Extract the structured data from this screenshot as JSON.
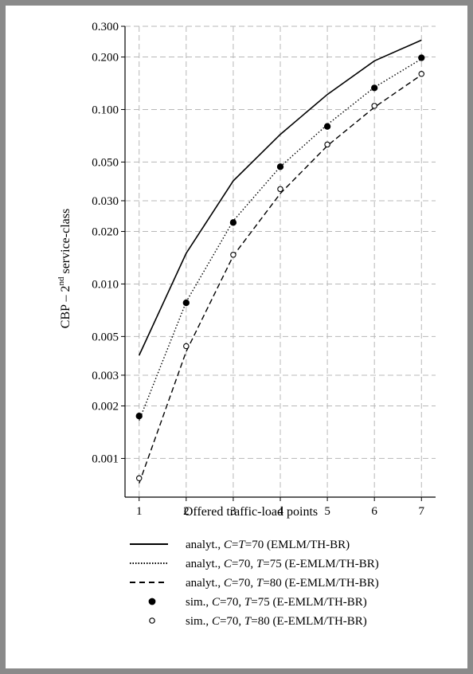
{
  "chart_data": {
    "type": "line",
    "yscale": "log",
    "xlabel": "Offered traffic-load points",
    "ylabel_main": "CBP – 2",
    "ylabel_sup": "nd",
    "ylabel_tail": " service-class",
    "ylim": [
      0.0006,
      0.3
    ],
    "xlim": [
      0.7,
      7.3
    ],
    "grid": true,
    "x": [
      1,
      2,
      3,
      4,
      5,
      6,
      7
    ],
    "x_ticks": [
      "1",
      "2",
      "3",
      "4",
      "5",
      "6",
      "7"
    ],
    "y_ticks": [
      {
        "v": 0.001,
        "label": "0.001"
      },
      {
        "v": 0.002,
        "label": "0.002"
      },
      {
        "v": 0.003,
        "label": "0.003"
      },
      {
        "v": 0.005,
        "label": "0.005"
      },
      {
        "v": 0.01,
        "label": "0.010"
      },
      {
        "v": 0.02,
        "label": "0.020"
      },
      {
        "v": 0.03,
        "label": "0.030"
      },
      {
        "v": 0.05,
        "label": "0.050"
      },
      {
        "v": 0.1,
        "label": "0.100"
      },
      {
        "v": 0.2,
        "label": "0.200"
      },
      {
        "v": 0.3,
        "label": "0.300"
      }
    ],
    "series": [
      {
        "name": "analyt., C=T=70 (EMLM/TH-BR)",
        "kind": "line",
        "style": "solid",
        "values": [
          0.0039,
          0.015,
          0.039,
          0.072,
          0.122,
          0.19,
          0.25
        ]
      },
      {
        "name": "analyt., C=70, T=75 (E-EMLM/TH-BR)",
        "kind": "line",
        "style": "dotted",
        "values": [
          0.00165,
          0.0079,
          0.023,
          0.047,
          0.082,
          0.134,
          0.195
        ]
      },
      {
        "name": "analyt., C=70, T=80 (E-EMLM/TH-BR)",
        "kind": "line",
        "style": "dashed",
        "values": [
          0.00072,
          0.0041,
          0.0145,
          0.033,
          0.062,
          0.103,
          0.158
        ]
      },
      {
        "name": "sim., C=70, T=75 (E-EMLM/TH-BR)",
        "kind": "marker",
        "style": "filled",
        "values": [
          0.00175,
          0.0078,
          0.0225,
          0.047,
          0.08,
          0.133,
          0.198
        ]
      },
      {
        "name": "sim., C=70, T=80 (E-EMLM/TH-BR)",
        "kind": "marker",
        "style": "open",
        "values": [
          0.00077,
          0.0044,
          0.0147,
          0.035,
          0.063,
          0.105,
          0.16
        ]
      }
    ]
  },
  "legend": [
    {
      "prefix": "analyt., ",
      "parts": [
        {
          "t": "C",
          "i": true
        },
        {
          "t": "=",
          "i": false
        },
        {
          "t": "T",
          "i": true
        },
        {
          "t": "=70 (EMLM/TH-BR)",
          "i": false
        }
      ]
    },
    {
      "prefix": "analyt., ",
      "parts": [
        {
          "t": "C",
          "i": true
        },
        {
          "t": "=70, ",
          "i": false
        },
        {
          "t": "T",
          "i": true
        },
        {
          "t": "=75 (E-EMLM/TH-BR)",
          "i": false
        }
      ]
    },
    {
      "prefix": "analyt., ",
      "parts": [
        {
          "t": "C",
          "i": true
        },
        {
          "t": "=70, ",
          "i": false
        },
        {
          "t": "T",
          "i": true
        },
        {
          "t": "=80 (E-EMLM/TH-BR)",
          "i": false
        }
      ]
    },
    {
      "prefix": "sim., ",
      "parts": [
        {
          "t": "C",
          "i": true
        },
        {
          "t": "=70, ",
          "i": false
        },
        {
          "t": "T",
          "i": true
        },
        {
          "t": "=75 (E-EMLM/TH-BR)",
          "i": false
        }
      ]
    },
    {
      "prefix": "sim., ",
      "parts": [
        {
          "t": "C",
          "i": true
        },
        {
          "t": "=70, ",
          "i": false
        },
        {
          "t": "T",
          "i": true
        },
        {
          "t": "=80 (E-EMLM/TH-BR)",
          "i": false
        }
      ]
    }
  ]
}
